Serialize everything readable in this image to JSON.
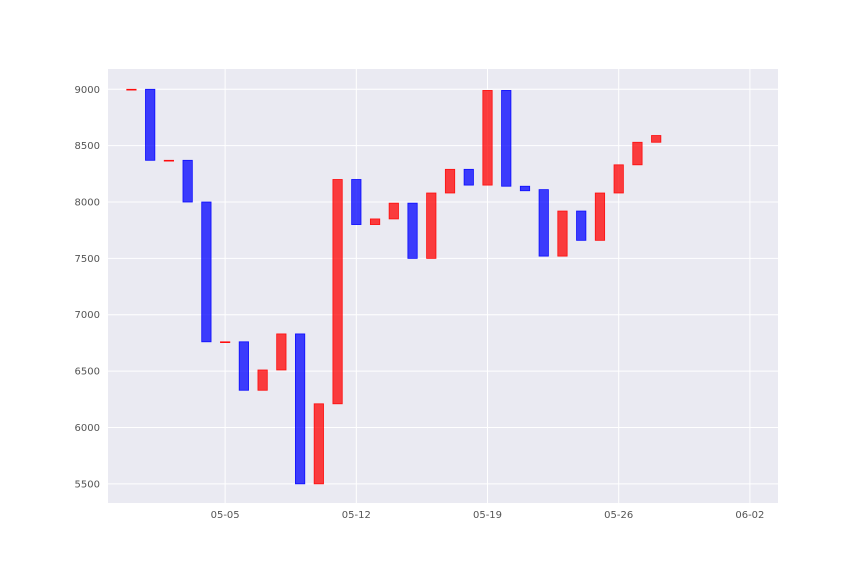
{
  "chart_data": {
    "type": "bar",
    "title": "",
    "xlabel": "",
    "ylabel": "",
    "ylim": [
      5330,
      9180
    ],
    "xlim": [
      "2024-04-28T18:00",
      "2024-06-03T12:00"
    ],
    "grid": true,
    "colors": {
      "up": "#ff0000",
      "down": "#0000ff",
      "background": "#eaeaf2",
      "grid": "#ffffff"
    },
    "yticks": [
      5500,
      6000,
      6500,
      7000,
      7500,
      8000,
      8500,
      9000
    ],
    "xticks": [
      {
        "date": "2024-05-05",
        "label": "05-05"
      },
      {
        "date": "2024-05-12",
        "label": "05-12"
      },
      {
        "date": "2024-05-19",
        "label": "05-19"
      },
      {
        "date": "2024-05-26",
        "label": "05-26"
      },
      {
        "date": "2024-06-02",
        "label": "06-02"
      }
    ],
    "bars": [
      {
        "date": "2024-04-30",
        "open": 9000,
        "close": 9000
      },
      {
        "date": "2024-05-01",
        "open": 9000,
        "close": 8370
      },
      {
        "date": "2024-05-02",
        "open": 8370,
        "close": 8370
      },
      {
        "date": "2024-05-03",
        "open": 8370,
        "close": 8000
      },
      {
        "date": "2024-05-04",
        "open": 8000,
        "close": 6760
      },
      {
        "date": "2024-05-05",
        "open": 6760,
        "close": 6760
      },
      {
        "date": "2024-05-06",
        "open": 6760,
        "close": 6330
      },
      {
        "date": "2024-05-07",
        "open": 6330,
        "close": 6510
      },
      {
        "date": "2024-05-08",
        "open": 6510,
        "close": 6830
      },
      {
        "date": "2024-05-09",
        "open": 6830,
        "close": 5500
      },
      {
        "date": "2024-05-10",
        "open": 5500,
        "close": 6210
      },
      {
        "date": "2024-05-11",
        "open": 6210,
        "close": 8200
      },
      {
        "date": "2024-05-12",
        "open": 8200,
        "close": 7800
      },
      {
        "date": "2024-05-13",
        "open": 7800,
        "close": 7850
      },
      {
        "date": "2024-05-14",
        "open": 7850,
        "close": 7990
      },
      {
        "date": "2024-05-15",
        "open": 7990,
        "close": 7500
      },
      {
        "date": "2024-05-16",
        "open": 7500,
        "close": 8080
      },
      {
        "date": "2024-05-17",
        "open": 8080,
        "close": 8290
      },
      {
        "date": "2024-05-18",
        "open": 8290,
        "close": 8150
      },
      {
        "date": "2024-05-19",
        "open": 8150,
        "close": 8990
      },
      {
        "date": "2024-05-20",
        "open": 8990,
        "close": 8140
      },
      {
        "date": "2024-05-21",
        "open": 8140,
        "close": 8100
      },
      {
        "date": "2024-05-22",
        "open": 8110,
        "close": 7520
      },
      {
        "date": "2024-05-23",
        "open": 7520,
        "close": 7920
      },
      {
        "date": "2024-05-24",
        "open": 7920,
        "close": 7660
      },
      {
        "date": "2024-05-25",
        "open": 7660,
        "close": 8080
      },
      {
        "date": "2024-05-26",
        "open": 8080,
        "close": 8330
      },
      {
        "date": "2024-05-27",
        "open": 8330,
        "close": 8530
      },
      {
        "date": "2024-05-28",
        "open": 8530,
        "close": 8590
      }
    ]
  }
}
